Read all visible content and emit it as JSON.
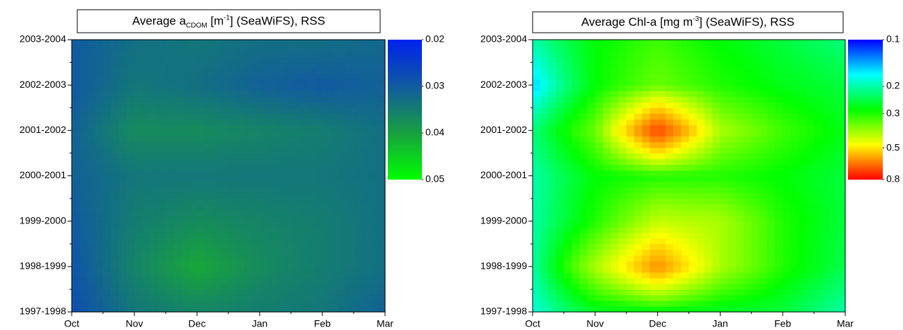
{
  "chart_data": [
    {
      "type": "heatmap",
      "title": [
        "Average a",
        "CDOM",
        " [m",
        "-1",
        "] (SeaWiFS), RSS"
      ],
      "title_style": [
        "normal",
        "sub",
        "normal",
        "super",
        "normal"
      ],
      "x": [
        "Oct",
        "Nov",
        "Dec",
        "Jan",
        "Feb",
        "Mar"
      ],
      "y": [
        "1997-1998",
        "1998-1999",
        "1999-2000",
        "2000-2001",
        "2001-2002",
        "2002-2003",
        "2003-2004"
      ],
      "values": [
        [
          0.028,
          0.034,
          0.036,
          0.035,
          0.034,
          0.031
        ],
        [
          0.029,
          0.036,
          0.041,
          0.037,
          0.035,
          0.033
        ],
        [
          0.03,
          0.035,
          0.037,
          0.036,
          0.035,
          0.033
        ],
        [
          0.031,
          0.034,
          0.034,
          0.034,
          0.034,
          0.033
        ],
        [
          0.031,
          0.037,
          0.037,
          0.036,
          0.035,
          0.033
        ],
        [
          0.03,
          0.034,
          0.033,
          0.031,
          0.03,
          0.031
        ],
        [
          0.03,
          0.033,
          0.034,
          0.033,
          0.033,
          0.032
        ]
      ],
      "clim": [
        0.02,
        0.05
      ],
      "cticks": [
        0.02,
        0.03,
        0.04,
        0.05
      ],
      "log": false,
      "colormap": [
        "#0022ee",
        "#115aa0",
        "#18a040",
        "#00ff00"
      ]
    },
    {
      "type": "heatmap",
      "title": [
        "Average Chl-a [mg m",
        "-3",
        "] (SeaWiFS), RSS"
      ],
      "title_style": [
        "normal",
        "super",
        "normal"
      ],
      "x": [
        "Oct",
        "Nov",
        "Dec",
        "Jan",
        "Feb",
        "Mar"
      ],
      "y": [
        "1997-1998",
        "1998-1999",
        "1999-2000",
        "2000-2001",
        "2001-2002",
        "2002-2003",
        "2003-2004"
      ],
      "values": [
        [
          0.18,
          0.26,
          0.27,
          0.26,
          0.25,
          0.2
        ],
        [
          0.2,
          0.4,
          0.6,
          0.4,
          0.3,
          0.24
        ],
        [
          0.2,
          0.3,
          0.42,
          0.4,
          0.3,
          0.25
        ],
        [
          0.2,
          0.28,
          0.3,
          0.3,
          0.28,
          0.25
        ],
        [
          0.22,
          0.35,
          0.7,
          0.4,
          0.32,
          0.27
        ],
        [
          0.15,
          0.28,
          0.35,
          0.3,
          0.27,
          0.25
        ],
        [
          0.2,
          0.28,
          0.32,
          0.28,
          0.25,
          0.22
        ]
      ],
      "clim": [
        0.1,
        0.8
      ],
      "cticks": [
        0.1,
        0.2,
        0.3,
        0.5,
        0.8
      ],
      "log": true,
      "colormap": [
        "#0000ff",
        "#00ffff",
        "#00ff00",
        "#ffff00",
        "#ff0000"
      ]
    }
  ]
}
